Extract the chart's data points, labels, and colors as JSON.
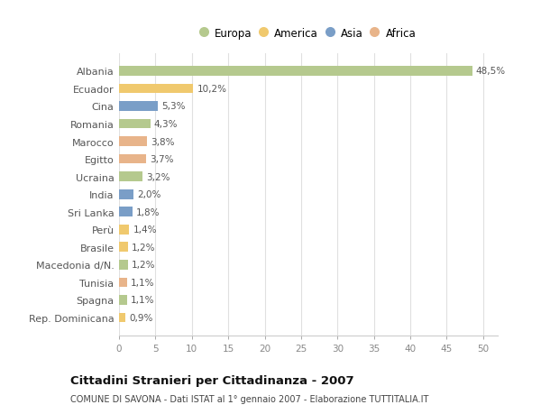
{
  "countries": [
    "Albania",
    "Ecuador",
    "Cina",
    "Romania",
    "Marocco",
    "Egitto",
    "Ucraina",
    "India",
    "Sri Lanka",
    "Perù",
    "Brasile",
    "Macedonia d/N.",
    "Tunisia",
    "Spagna",
    "Rep. Dominicana"
  ],
  "values": [
    48.5,
    10.2,
    5.3,
    4.3,
    3.8,
    3.7,
    3.2,
    2.0,
    1.8,
    1.4,
    1.2,
    1.2,
    1.1,
    1.1,
    0.9
  ],
  "labels": [
    "48,5%",
    "10,2%",
    "5,3%",
    "4,3%",
    "3,8%",
    "3,7%",
    "3,2%",
    "2,0%",
    "1,8%",
    "1,4%",
    "1,2%",
    "1,2%",
    "1,1%",
    "1,1%",
    "0,9%"
  ],
  "continents": [
    "Europa",
    "America",
    "Asia",
    "Europa",
    "Africa",
    "Africa",
    "Europa",
    "Asia",
    "Asia",
    "America",
    "America",
    "Europa",
    "Africa",
    "Europa",
    "America"
  ],
  "continent_colors": {
    "Europa": "#b5c98e",
    "America": "#f0c96e",
    "Asia": "#7a9ec7",
    "Africa": "#e8b48a"
  },
  "legend_order": [
    "Europa",
    "America",
    "Asia",
    "Africa"
  ],
  "title": "Cittadini Stranieri per Cittadinanza - 2007",
  "subtitle": "COMUNE DI SAVONA - Dati ISTAT al 1° gennaio 2007 - Elaborazione TUTTITALIA.IT",
  "xlim": [
    0,
    52
  ],
  "xticks": [
    0,
    5,
    10,
    15,
    20,
    25,
    30,
    35,
    40,
    45,
    50
  ],
  "background_color": "#ffffff",
  "grid_color": "#e0e0e0",
  "bar_height": 0.55
}
